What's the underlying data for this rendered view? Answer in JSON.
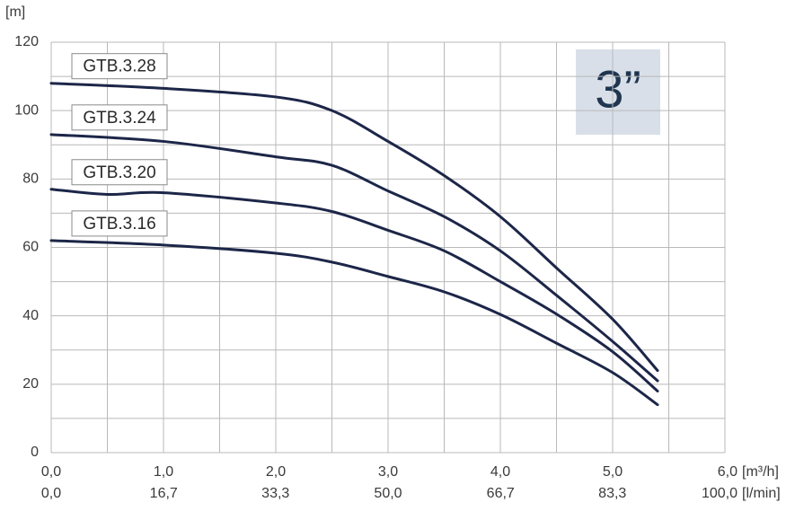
{
  "chart_data": {
    "type": "line",
    "y_label": "[m]",
    "x_label": "[m³/h]",
    "x2_label": "[l/min]",
    "badge": "3”",
    "xlim": [
      0,
      6
    ],
    "ylim": [
      0,
      120
    ],
    "x2lim": [
      0,
      100
    ],
    "grid": true,
    "minor_grid": true,
    "color": "#1c2648",
    "yticks": [
      0,
      20,
      40,
      60,
      80,
      100,
      120
    ],
    "xticks": [
      {
        "value": 0,
        "label": "0,0"
      },
      {
        "value": 1,
        "label": "1,0"
      },
      {
        "value": 2,
        "label": "2,0"
      },
      {
        "value": 3,
        "label": "3,0"
      },
      {
        "value": 4,
        "label": "4,0"
      },
      {
        "value": 5,
        "label": "5,0"
      },
      {
        "value": 6,
        "label": "6,0"
      }
    ],
    "x2ticks": [
      {
        "value": 0,
        "label": "0,0"
      },
      {
        "value": 16.7,
        "label": "16,7"
      },
      {
        "value": 33.3,
        "label": "33,3"
      },
      {
        "value": 50,
        "label": "50,0"
      },
      {
        "value": 66.7,
        "label": "66,7"
      },
      {
        "value": 83.3,
        "label": "83,3"
      },
      {
        "value": 100,
        "label": "100,0"
      }
    ],
    "series": [
      {
        "name": "GTB.3.28",
        "x": [
          0,
          1,
          2,
          2.5,
          3,
          3.5,
          4,
          4.5,
          5,
          5.4
        ],
        "values": [
          108,
          106.5,
          104,
          100,
          91,
          81,
          69,
          54,
          39,
          24
        ]
      },
      {
        "name": "GTB.3.24",
        "x": [
          0,
          1,
          2,
          2.5,
          3,
          3.5,
          4,
          4.5,
          5,
          5.4
        ],
        "values": [
          93,
          91,
          86.5,
          84,
          76.5,
          69,
          59,
          46,
          32.5,
          21
        ]
      },
      {
        "name": "GTB.3.20",
        "x": [
          0,
          0.5,
          1,
          2,
          2.5,
          3,
          3.5,
          4,
          4.5,
          5,
          5.4
        ],
        "values": [
          77,
          75.5,
          76,
          73,
          70.5,
          65,
          59,
          50,
          40.5,
          29.5,
          18
        ]
      },
      {
        "name": "GTB.3.16",
        "x": [
          0,
          1,
          2,
          2.5,
          3,
          3.5,
          4,
          4.5,
          5,
          5.4
        ],
        "values": [
          62,
          60.7,
          58.3,
          55.7,
          51.5,
          47,
          40.4,
          32,
          23.4,
          14
        ]
      }
    ]
  }
}
